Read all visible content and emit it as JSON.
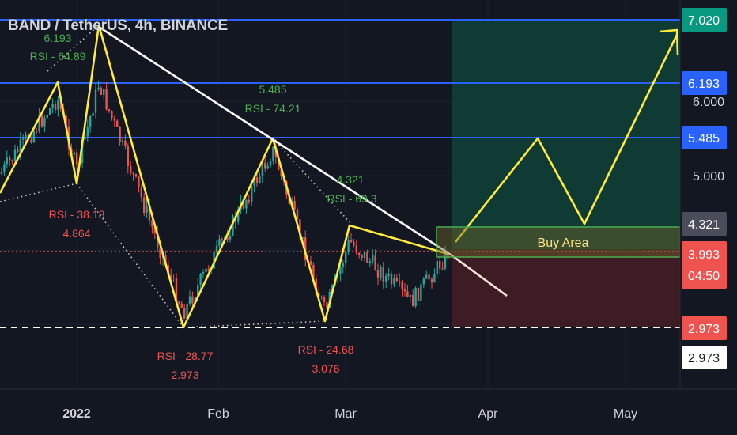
{
  "header": {
    "symbol_title": "BAND / TetherUS, 4h, BINANCE"
  },
  "colors": {
    "background": "#131722",
    "grid": "#1e222d",
    "candle_up": "#26a69a",
    "candle_down": "#ef5350",
    "resistance_line": "#2962ff",
    "pattern_line": "#ffeb3b",
    "trendline": "#ffffff",
    "zone_profit": "#0f3b34",
    "zone_loss": "#3d1c24",
    "buy_area_border": "#4caf50",
    "rsi_up_text": "#4caf50",
    "rsi_down_text": "#ef5350",
    "axis_text": "#d1d4dc"
  },
  "chart_data": {
    "type": "candlestick",
    "title": "BAND / TetherUS, 4h, BINANCE",
    "x_ticks": [
      "2022",
      "Feb",
      "Mar",
      "Apr",
      "May"
    ],
    "price_ticks": [
      "6.000",
      "5.000"
    ],
    "horizontal_levels": [
      {
        "value": 7.02,
        "label": "7.020",
        "color": "#2962ff",
        "style": "solid"
      },
      {
        "value": 6.193,
        "label": "6.193",
        "color": "#2962ff",
        "style": "solid"
      },
      {
        "value": 5.485,
        "label": "5.485",
        "color": "#2962ff",
        "style": "solid"
      },
      {
        "value": 2.973,
        "label": "2.973",
        "color": "#ffffff",
        "style": "dashed"
      }
    ],
    "price_badges": [
      {
        "label": "7.020",
        "bg": "#089981",
        "fg": "#ffffff"
      },
      {
        "label": "6.193",
        "bg": "#2962ff",
        "fg": "#ffffff"
      },
      {
        "label": "5.485",
        "bg": "#2962ff",
        "fg": "#ffffff"
      },
      {
        "label": "4.321",
        "bg": "#4a4e5a",
        "fg": "#ffffff"
      },
      {
        "label": "3.993",
        "bg": "#ef5350",
        "fg": "#ffffff"
      },
      {
        "label": "04:50",
        "bg": "#ef5350",
        "fg": "#ffffff"
      },
      {
        "label": "2.973",
        "bg": "#ef5350",
        "fg": "#ffffff"
      },
      {
        "label": "2.973",
        "bg": "#ffffff",
        "fg": "#131722"
      }
    ],
    "current_price": 3.993,
    "countdown": "04:50",
    "annotations": [
      {
        "lines": [
          "6.193",
          "RSI - 64.89"
        ],
        "kind": "up"
      },
      {
        "lines": [
          "5.485",
          "RSI - 74.21"
        ],
        "kind": "up"
      },
      {
        "lines": [
          "4.321",
          "RSI - 69.3"
        ],
        "kind": "up"
      },
      {
        "lines": [
          "RSI - 38.18",
          "4.864"
        ],
        "kind": "down"
      },
      {
        "lines": [
          "RSI - 28.77",
          "2.973"
        ],
        "kind": "down"
      },
      {
        "lines": [
          "RSI - 24.68",
          "3.076"
        ],
        "kind": "down"
      }
    ],
    "zone_label": "Buy Area"
  }
}
